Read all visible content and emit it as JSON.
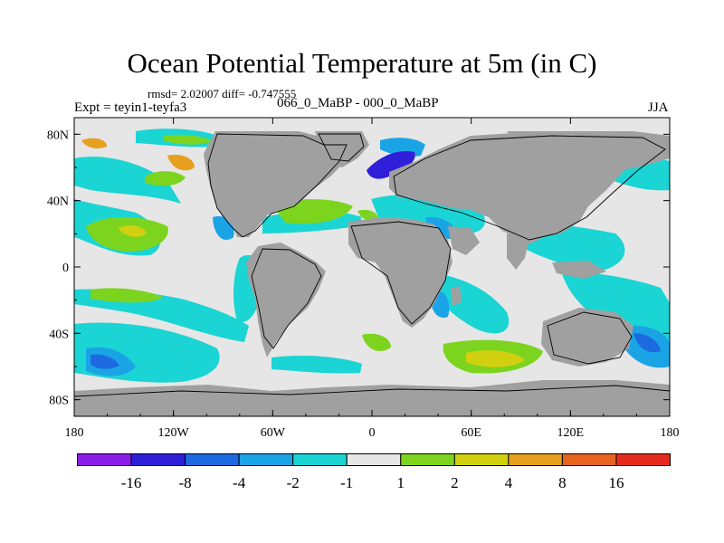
{
  "title": "Ocean Potential Temperature at 5m (in C)",
  "stats": "rmsd= 2.02007 diff= -0.747555",
  "experiment": "Expt = teyin1-teyfa3",
  "difference_label": "066_0_MaBP - 000_0_MaBP",
  "season": "JJA",
  "chart_data": {
    "type": "heatmap",
    "projection": "cylindrical-equidistant",
    "x_range": [
      -180,
      180
    ],
    "y_range": [
      -90,
      90
    ],
    "x_ticks": [
      {
        "value": -180,
        "label": "180"
      },
      {
        "value": -120,
        "label": "120W"
      },
      {
        "value": -60,
        "label": "60W"
      },
      {
        "value": 0,
        "label": "0"
      },
      {
        "value": 60,
        "label": "60E"
      },
      {
        "value": 120,
        "label": "120E"
      },
      {
        "value": 180,
        "label": "180"
      }
    ],
    "y_ticks": [
      {
        "value": 80,
        "label": "80N"
      },
      {
        "value": 40,
        "label": "40N"
      },
      {
        "value": 0,
        "label": "0"
      },
      {
        "value": -40,
        "label": "40S"
      },
      {
        "value": -80,
        "label": "80S"
      }
    ],
    "colorbar": {
      "labels": [
        "-16",
        "-8",
        "-4",
        "-2",
        "-1",
        "1",
        "2",
        "4",
        "8",
        "16"
      ],
      "colors": [
        "#8a1ee6",
        "#2f1fd8",
        "#1d6ae0",
        "#1aa4e6",
        "#1bd4d4",
        "#e6e6e6",
        "#7cd41e",
        "#d0d010",
        "#e6a01e",
        "#e6641e",
        "#e62a1e"
      ]
    },
    "land_color": "#a0a0a0",
    "background_color": "#e6e6e6"
  }
}
